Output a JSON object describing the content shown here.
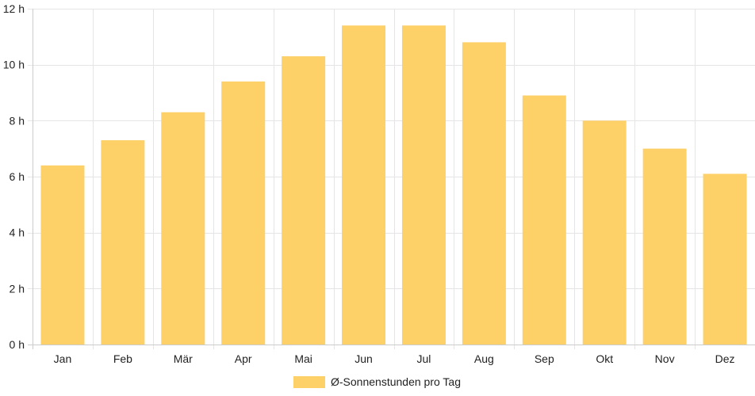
{
  "chart_data": {
    "type": "bar",
    "title": "",
    "xlabel": "",
    "ylabel": "",
    "categories": [
      "Jan",
      "Feb",
      "Mär",
      "Apr",
      "Mai",
      "Jun",
      "Jul",
      "Aug",
      "Sep",
      "Okt",
      "Nov",
      "Dez"
    ],
    "series": [
      {
        "name": "Ø-Sonnenstunden pro Tag",
        "values": [
          6.4,
          7.3,
          8.3,
          9.4,
          10.3,
          11.4,
          11.4,
          10.8,
          8.9,
          8.0,
          7.0,
          6.1
        ],
        "color": "#fdd068"
      }
    ],
    "ylim": [
      0,
      12
    ],
    "y_ticks": [
      0,
      2,
      4,
      6,
      8,
      10,
      12
    ],
    "y_tick_suffix": " h",
    "grid": true,
    "grid_color": "#e5e5e5",
    "axis_color": "#cccccc",
    "legend_position": "bottom-center"
  }
}
